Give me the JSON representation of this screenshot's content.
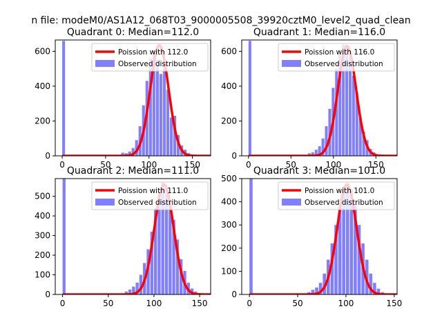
{
  "figure": {
    "suptitle": "n file: modeM0/AS1A12_068T03_9000005508_39920cztM0_level2_quad_clean"
  },
  "colors": {
    "hist": "#8080ff",
    "fit": "#ff0000",
    "axis": "#000000"
  },
  "chart_data": [
    {
      "type": "bar",
      "title": "Quadrant 0: Median=112.0",
      "xlim": [
        -8,
        171
      ],
      "ylim": [
        0,
        665
      ],
      "xticks": [
        0,
        50,
        100,
        150
      ],
      "yticks": [
        0,
        200,
        400,
        600
      ],
      "legend": {
        "placement": "top-right",
        "entries": [
          "Poission with 112.0",
          "Observed distribution"
        ]
      },
      "median": 112,
      "poisson_peak": 635,
      "bin_width": 3.3,
      "histogram": {
        "bin_start": [
          0,
          68,
          72,
          76,
          80,
          84,
          88,
          92,
          96,
          100,
          104,
          108,
          112,
          116,
          120,
          124,
          128,
          132,
          136,
          140,
          144,
          148,
          152
        ],
        "counts": [
          660,
          18,
          15,
          25,
          45,
          90,
          170,
          290,
          430,
          560,
          600,
          550,
          470,
          540,
          380,
          220,
          230,
          120,
          60,
          35,
          15,
          8,
          3
        ]
      }
    },
    {
      "type": "bar",
      "title": "Quadrant 1: Median=116.0",
      "xlim": [
        -8,
        175
      ],
      "ylim": [
        0,
        665
      ],
      "xticks": [
        0,
        50,
        100,
        150
      ],
      "yticks": [
        0,
        200,
        400,
        600
      ],
      "legend": {
        "placement": "top-right",
        "entries": [
          "Poission with 116.0",
          "Observed distribution"
        ]
      },
      "median": 116,
      "poisson_peak": 630,
      "bin_width": 3.3,
      "histogram": {
        "bin_start": [
          0,
          70,
          74,
          78,
          82,
          86,
          90,
          94,
          98,
          102,
          106,
          110,
          114,
          118,
          122,
          126,
          130,
          134,
          138,
          142,
          146,
          150
        ],
        "counts": [
          660,
          15,
          20,
          35,
          55,
          100,
          170,
          270,
          390,
          500,
          580,
          640,
          620,
          570,
          460,
          360,
          220,
          140,
          90,
          40,
          20,
          8
        ]
      }
    },
    {
      "type": "bar",
      "title": "Quadrant 2: Median=111.0",
      "xlim": [
        -8,
        162
      ],
      "ylim": [
        0,
        590
      ],
      "xticks": [
        0,
        50,
        100,
        150
      ],
      "yticks": [
        0,
        100,
        200,
        300,
        400,
        500
      ],
      "legend": {
        "placement": "top-right",
        "entries": [
          "Poission with 111.0",
          "Observed distribution"
        ]
      },
      "median": 111,
      "poisson_peak": 560,
      "bin_width": 3.3,
      "histogram": {
        "bin_start": [
          0,
          68,
          72,
          76,
          80,
          84,
          88,
          92,
          96,
          100,
          104,
          108,
          112,
          116,
          120,
          124,
          128,
          132,
          136,
          140,
          144,
          148
        ],
        "counts": [
          590,
          15,
          25,
          40,
          60,
          100,
          160,
          230,
          320,
          440,
          510,
          570,
          540,
          460,
          380,
          280,
          180,
          120,
          60,
          30,
          15,
          5
        ]
      }
    },
    {
      "type": "bar",
      "title": "Quadrant 3: Median=101.0",
      "xlim": [
        -8,
        153
      ],
      "ylim": [
        0,
        500
      ],
      "xticks": [
        0,
        50,
        100,
        150
      ],
      "yticks": [
        0,
        100,
        200,
        300,
        400,
        500
      ],
      "legend": {
        "placement": "top-right",
        "entries": [
          "Poission with 101.0",
          "Observed distribution"
        ]
      },
      "median": 101,
      "poisson_peak": 475,
      "bin_width": 3.3,
      "histogram": {
        "bin_start": [
          0,
          60,
          64,
          68,
          72,
          76,
          80,
          84,
          88,
          92,
          96,
          100,
          104,
          108,
          112,
          116,
          120,
          124,
          128,
          132,
          136
        ],
        "counts": [
          500,
          10,
          20,
          30,
          50,
          90,
          150,
          220,
          300,
          380,
          440,
          480,
          450,
          390,
          300,
          220,
          150,
          90,
          50,
          25,
          10
        ]
      }
    }
  ]
}
